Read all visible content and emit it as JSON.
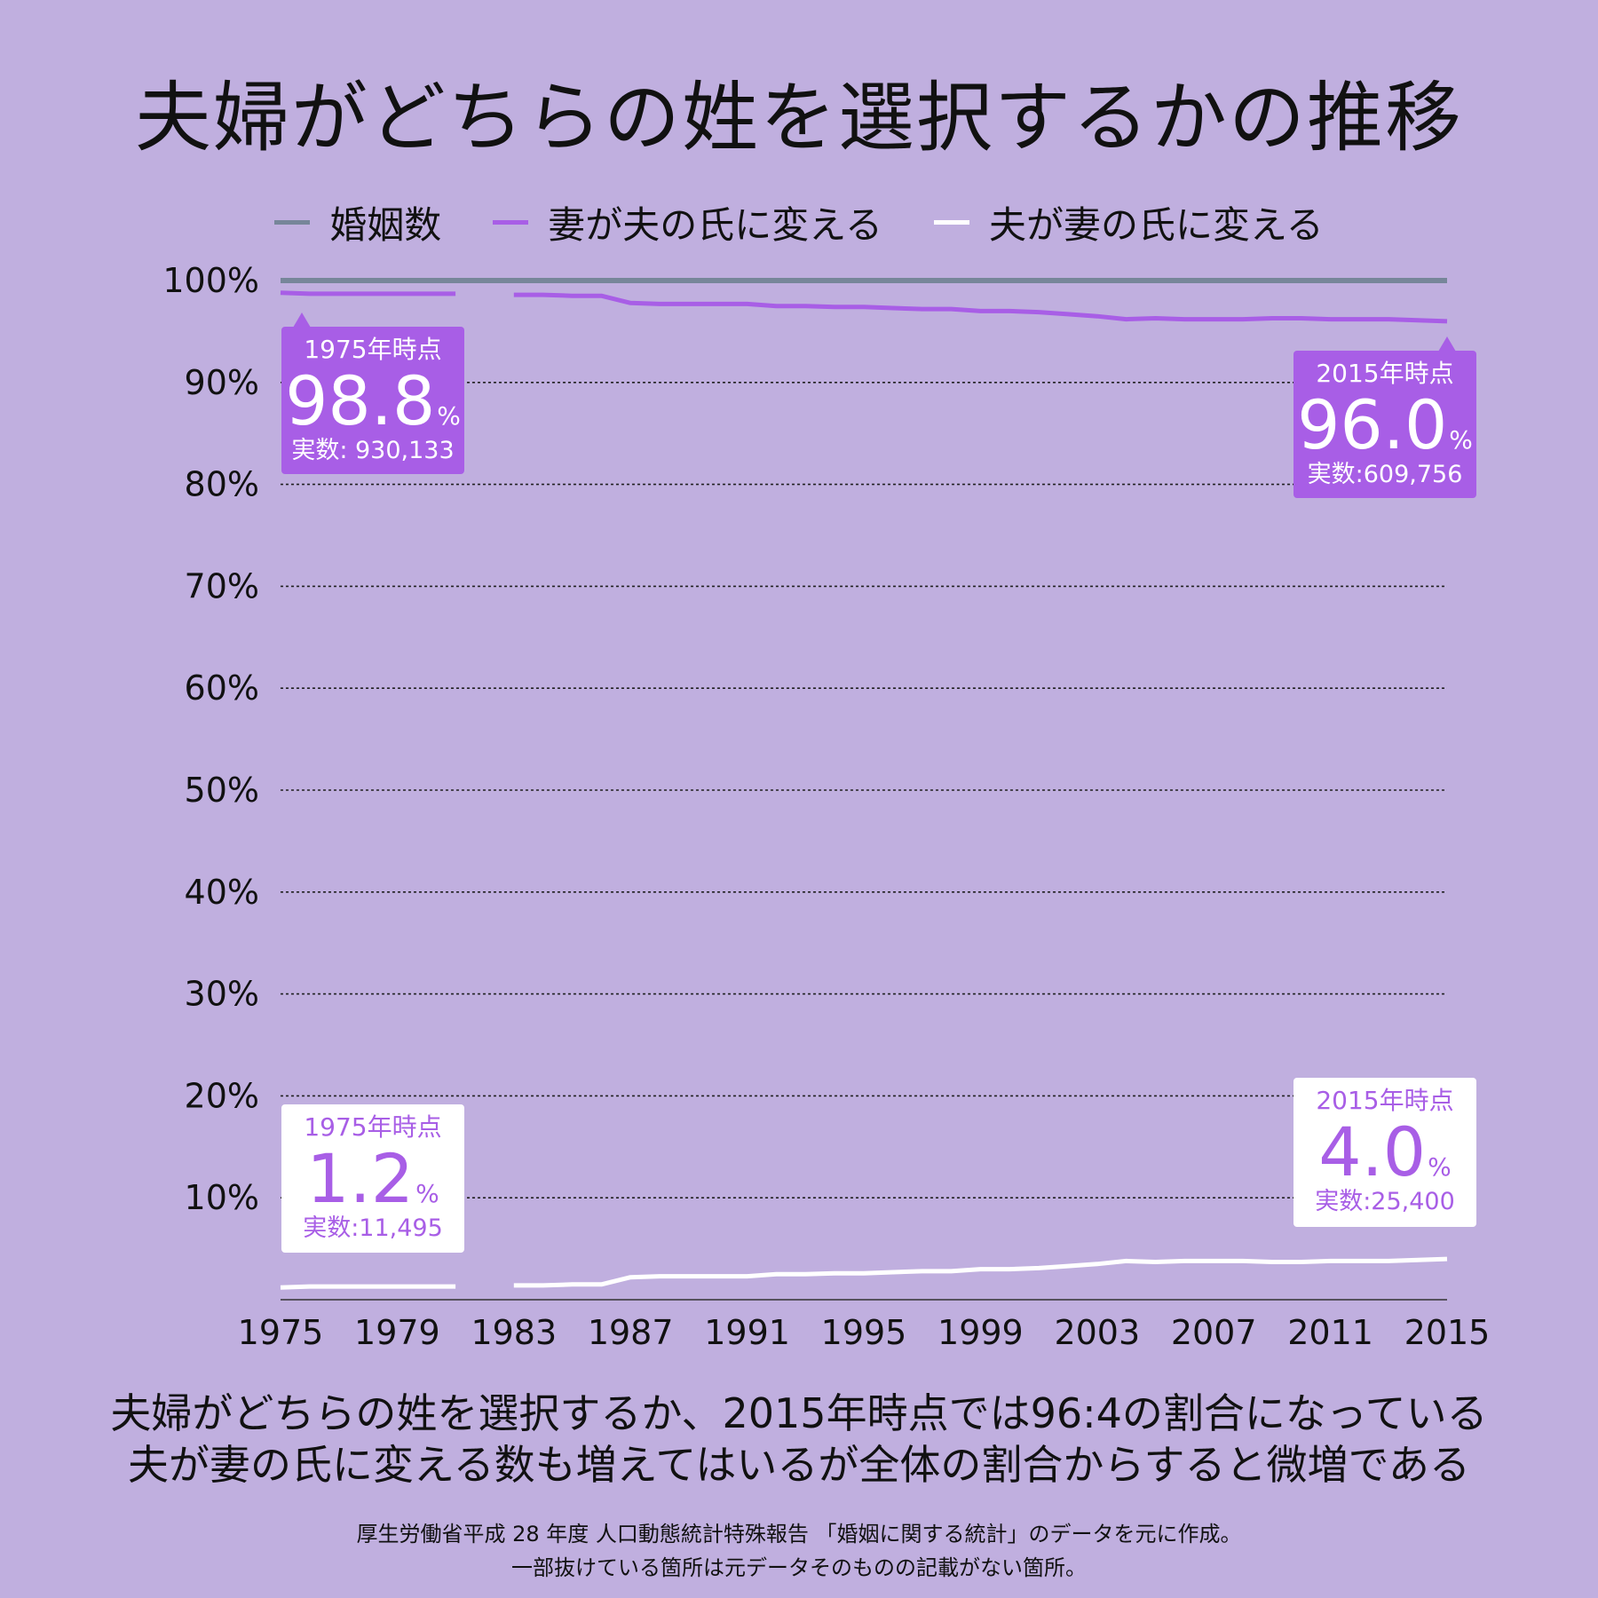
{
  "title": "夫婦がどちらの姓を選択するかの推移",
  "legend": [
    {
      "label": "婚姻数",
      "color": "#77869a"
    },
    {
      "label": "妻が夫の氏に変える",
      "color": "#a85ee6"
    },
    {
      "label": "夫が妻の氏に変える",
      "color": "#ffffff"
    }
  ],
  "chart_data": {
    "type": "line",
    "title": "夫婦がどちらの姓を選択するかの推移",
    "xlabel": "",
    "ylabel": "",
    "x_ticks": [
      "1975",
      "1979",
      "1983",
      "1987",
      "1991",
      "1995",
      "1999",
      "2003",
      "2007",
      "2011",
      "2015"
    ],
    "y_ticks": [
      "100%",
      "90%",
      "80%",
      "70%",
      "60%",
      "50%",
      "40%",
      "30%",
      "20%",
      "10%"
    ],
    "xlim": [
      1975,
      2015
    ],
    "ylim": [
      0,
      100
    ],
    "grid": true,
    "legend_position": "top",
    "series": [
      {
        "name": "婚姻数",
        "color": "#77869a",
        "x": [
          1975,
          2015
        ],
        "y": [
          100,
          100
        ]
      },
      {
        "name": "妻が夫の氏に変える",
        "color": "#a85ee6",
        "segments": [
          {
            "x": [
              1975,
              1976,
              1977,
              1978,
              1979,
              1980,
              1981
            ],
            "y": [
              98.8,
              98.7,
              98.7,
              98.7,
              98.7,
              98.7,
              98.7
            ]
          },
          {
            "x": [
              1983,
              1984,
              1985,
              1986,
              1987,
              1988,
              1989,
              1990,
              1991,
              1992,
              1993,
              1994,
              1995,
              1996,
              1997,
              1998,
              1999,
              2000,
              2001,
              2002,
              2003,
              2004,
              2005,
              2006,
              2007,
              2008,
              2009,
              2010,
              2011,
              2012,
              2013,
              2014,
              2015
            ],
            "y": [
              98.6,
              98.6,
              98.5,
              98.5,
              97.8,
              97.7,
              97.7,
              97.7,
              97.7,
              97.5,
              97.5,
              97.4,
              97.4,
              97.3,
              97.2,
              97.2,
              97.0,
              97.0,
              96.9,
              96.7,
              96.5,
              96.2,
              96.3,
              96.2,
              96.2,
              96.2,
              96.3,
              96.3,
              96.2,
              96.2,
              96.2,
              96.1,
              96.0
            ]
          }
        ]
      },
      {
        "name": "夫が妻の氏に変える",
        "color": "#ffffff",
        "segments": [
          {
            "x": [
              1975,
              1976,
              1977,
              1978,
              1979,
              1980,
              1981
            ],
            "y": [
              1.2,
              1.3,
              1.3,
              1.3,
              1.3,
              1.3,
              1.3
            ]
          },
          {
            "x": [
              1983,
              1984,
              1985,
              1986,
              1987,
              1988,
              1989,
              1990,
              1991,
              1992,
              1993,
              1994,
              1995,
              1996,
              1997,
              1998,
              1999,
              2000,
              2001,
              2002,
              2003,
              2004,
              2005,
              2006,
              2007,
              2008,
              2009,
              2010,
              2011,
              2012,
              2013,
              2014,
              2015
            ],
            "y": [
              1.4,
              1.4,
              1.5,
              1.5,
              2.2,
              2.3,
              2.3,
              2.3,
              2.3,
              2.5,
              2.5,
              2.6,
              2.6,
              2.7,
              2.8,
              2.8,
              3.0,
              3.0,
              3.1,
              3.3,
              3.5,
              3.8,
              3.7,
              3.8,
              3.8,
              3.8,
              3.7,
              3.7,
              3.8,
              3.8,
              3.8,
              3.9,
              4.0
            ]
          }
        ]
      }
    ],
    "annotations": [
      {
        "label": "1975年時点",
        "value": "98.8",
        "unit": "%",
        "count": "実数: 930,133",
        "style": "purple"
      },
      {
        "label": "2015年時点",
        "value": "96.0",
        "unit": "%",
        "count": "実数:609,756",
        "style": "purple"
      },
      {
        "label": "1975年時点",
        "value": "1.2",
        "unit": "%",
        "count": "実数:11,495",
        "style": "white"
      },
      {
        "label": "2015年時点",
        "value": "4.0",
        "unit": "%",
        "count": "実数:25,400",
        "style": "white"
      }
    ]
  },
  "summary": [
    "夫婦がどちらの姓を選択するか、2015年時点では96:4の割合になっている",
    "夫が妻の氏に変える数も増えてはいるが全体の割合からすると微増である"
  ],
  "source": [
    "厚生労働省平成 28 年度 人口動態統計特殊報告 「婚姻に関する統計」のデータを元に作成。",
    "一部抜けている箇所は元データそのものの記載がない箇所。"
  ]
}
